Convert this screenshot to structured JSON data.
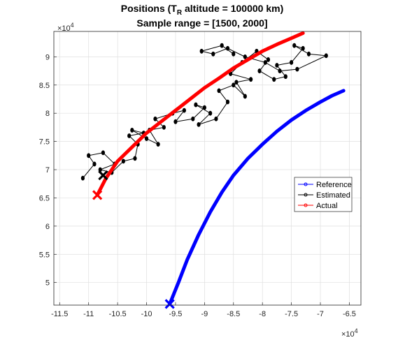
{
  "chart_data": {
    "type": "line",
    "title_main": "Positions (T",
    "title_sub": "R",
    "title_rest": " altitude = 100000 km)",
    "subtitle": "Sample range = [1500, 2000]",
    "x_exponent_base": "×10",
    "x_exponent_power": "4",
    "y_exponent_base": "×10",
    "y_exponent_power": "4",
    "xlim": [
      -11.6,
      -6.3
    ],
    "ylim": [
      4.6,
      9.45
    ],
    "x_ticks": [
      -11.5,
      -11,
      -10.5,
      -10,
      -9.5,
      -9,
      -8.5,
      -8,
      -7.5,
      -7,
      -6.5
    ],
    "x_tick_labels": [
      "-11.5",
      "-11",
      "-10.5",
      "-10",
      "-9.5",
      "-9",
      "-8.5",
      "-8",
      "-7.5",
      "-7",
      "-6.5"
    ],
    "y_ticks": [
      5,
      5.5,
      6,
      6.5,
      7,
      7.5,
      8,
      8.5,
      9
    ],
    "y_tick_labels": [
      "5",
      "5.5",
      "6",
      "6.5",
      "7",
      "7.5",
      "8",
      "8.5",
      "9"
    ],
    "grid": true,
    "legend_position": "right-middle",
    "series": [
      {
        "name": "Reference",
        "color": "#0000ff",
        "x": [
          -9.6,
          -9.45,
          -9.3,
          -9.1,
          -8.9,
          -8.7,
          -8.5,
          -8.25,
          -8.0,
          -7.75,
          -7.5,
          -7.25,
          -7.0,
          -6.8,
          -6.6
        ],
        "y": [
          4.62,
          5.0,
          5.4,
          5.85,
          6.25,
          6.6,
          6.9,
          7.2,
          7.45,
          7.68,
          7.88,
          8.05,
          8.2,
          8.31,
          8.4
        ]
      },
      {
        "name": "Estimated",
        "color": "#000000",
        "x": [
          -11.1,
          -10.9,
          -11.0,
          -10.75,
          -10.55,
          -10.8,
          -10.6,
          -10.4,
          -10.2,
          -10.15,
          -10.3,
          -10.05,
          -10.25,
          -10.0,
          -9.8,
          -9.95,
          -9.7,
          -9.85,
          -9.55,
          -9.35,
          -9.5,
          -9.2,
          -9.0,
          -9.15,
          -8.9,
          -9.1,
          -8.8,
          -8.6,
          -8.75,
          -8.5,
          -8.3,
          -8.45,
          -8.2,
          -8.55,
          -8.35,
          -8.1,
          -7.9,
          -8.05,
          -7.8,
          -7.6,
          -7.75,
          -7.5,
          -7.3,
          -7.45,
          -7.2,
          -6.9,
          -7.4,
          -7.7,
          -7.95,
          -8.3,
          -8.6,
          -8.85,
          -9.05,
          -8.7,
          -8.5
        ],
        "y": [
          6.85,
          7.1,
          7.25,
          7.3,
          7.1,
          7.0,
          6.95,
          7.15,
          7.2,
          7.45,
          7.6,
          7.65,
          7.7,
          7.55,
          7.45,
          7.7,
          7.75,
          7.9,
          8.0,
          8.05,
          7.85,
          7.9,
          8.1,
          8.15,
          8.0,
          7.8,
          7.9,
          8.2,
          8.4,
          8.5,
          8.3,
          8.55,
          8.6,
          8.7,
          8.9,
          9.1,
          8.95,
          8.75,
          8.6,
          8.65,
          8.85,
          8.9,
          9.15,
          9.2,
          9.05,
          9.02,
          8.78,
          8.75,
          8.9,
          9.0,
          9.15,
          9.05,
          9.1,
          9.2,
          9.05
        ]
      },
      {
        "name": "Actual",
        "color": "#ff0000",
        "x": [
          -10.85,
          -10.7,
          -10.5,
          -10.25,
          -10.0,
          -9.75,
          -9.5,
          -9.25,
          -9.0,
          -8.75,
          -8.5,
          -8.25,
          -8.0,
          -7.75,
          -7.5,
          -7.3
        ],
        "y": [
          6.55,
          6.85,
          7.15,
          7.4,
          7.65,
          7.85,
          8.05,
          8.25,
          8.45,
          8.62,
          8.8,
          8.95,
          9.1,
          9.22,
          9.33,
          9.42
        ]
      }
    ],
    "markers": [
      {
        "series": "Reference",
        "x": -9.6,
        "y": 4.62,
        "color": "#0000ff"
      },
      {
        "series": "Estimated",
        "x": -10.75,
        "y": 6.9,
        "color": "#000000"
      },
      {
        "series": "Actual",
        "x": -10.85,
        "y": 6.55,
        "color": "#ff0000"
      }
    ]
  }
}
